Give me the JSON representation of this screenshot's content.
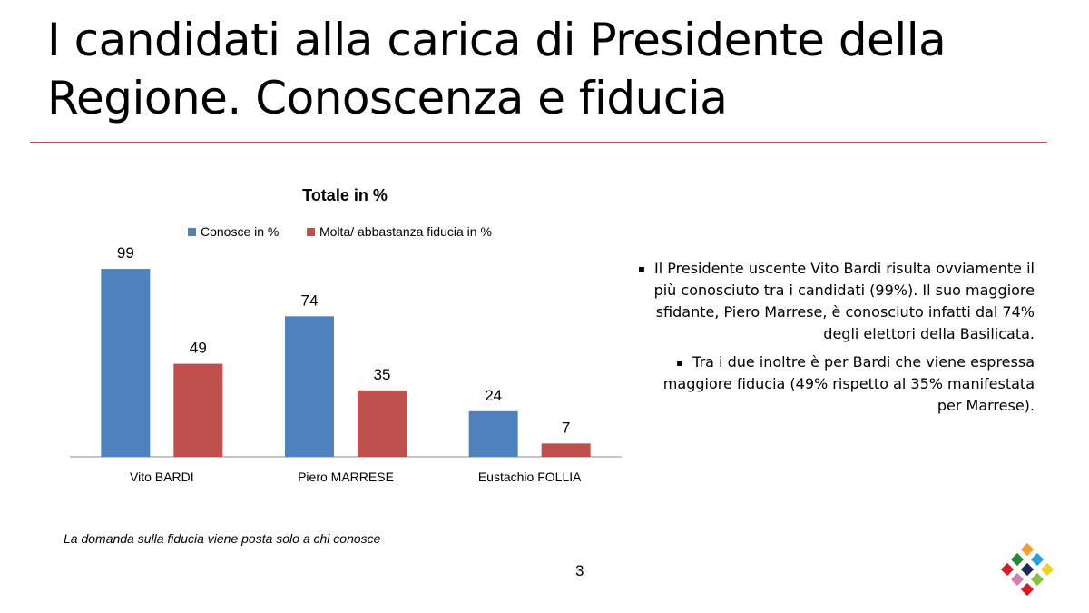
{
  "slide": {
    "title": "I candidati alla carica di Presidente della Regione. Conoscenza e fiducia",
    "accent_color": "#c0504d",
    "bullet_marker": "▪",
    "bullets": [
      "Il Presidente uscente Vito Bardi risulta ovviamente il più conosciuto tra i candidati (99%). Il suo maggiore sfidante, Piero Marrese, è conosciuto infatti dal 74% degli elettori della Basilicata.",
      "Tra i due inoltre è per Bardi che viene espressa maggiore fiducia (49% rispetto al 35% manifestata per Marrese)."
    ],
    "footnote": "La domanda sulla fiducia viene posta solo a chi conosce",
    "page_number": "3",
    "logo_icon": "colored-diamonds-logo-icon"
  },
  "chart_data": {
    "type": "bar",
    "title": "Totale in %",
    "categories": [
      "Vito BARDI",
      "Piero MARRESE",
      "Eustachio FOLLIA"
    ],
    "series": [
      {
        "name": "Conosce in %",
        "values": [
          99,
          74,
          24
        ],
        "color": "#4f81bd"
      },
      {
        "name": "Molta/ abbastanza fiducia in %",
        "values": [
          49,
          35,
          7
        ],
        "color": "#c0504d"
      }
    ],
    "ylim": [
      0,
      100
    ],
    "legend": "top",
    "grid": false,
    "data_labels": true
  }
}
